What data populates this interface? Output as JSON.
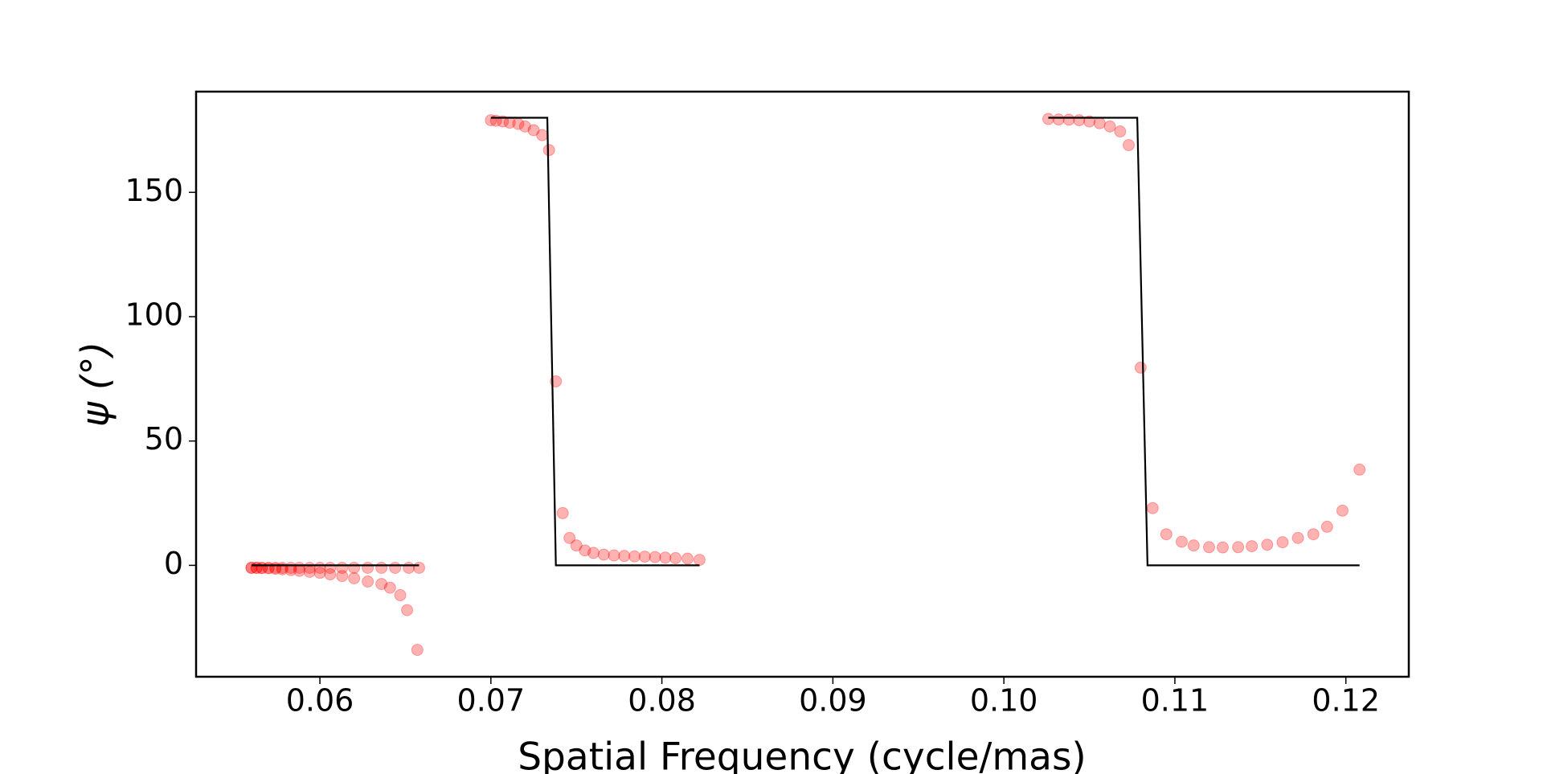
{
  "chart_data": {
    "type": "scatter",
    "xlabel": "Spatial Frequency (cycle/mas)",
    "ylabel": "ψ (°)",
    "xlim": [
      0.05276,
      0.12368
    ],
    "ylim": [
      -44.8,
      190.5
    ],
    "xticks": [
      0.06,
      0.07,
      0.08,
      0.09,
      {
        "value": 0.1,
        "label": "0.10"
      },
      0.11,
      0.12
    ],
    "yticks": [
      0,
      50,
      100,
      150
    ],
    "series": [
      {
        "type": "scatter",
        "color": "#ff0000",
        "x": [
          0.056,
          0.0563,
          0.0566,
          0.057,
          0.0574,
          0.0578,
          0.0583,
          0.0588,
          0.0594,
          0.06,
          0.0606,
          0.0613,
          0.062,
          0.0628,
          0.0636,
          0.0644,
          0.0652,
          0.0658
        ],
        "values": [
          -1,
          -1,
          -1,
          -1,
          -1,
          -1,
          -1,
          -1,
          -1,
          -1,
          -1,
          -1,
          -1,
          -1,
          -1,
          -1,
          -1,
          -1
        ]
      },
      {
        "type": "scatter",
        "color": "#ff0000",
        "x": [
          0.056,
          0.0563,
          0.0566,
          0.057,
          0.0574,
          0.0578,
          0.0583,
          0.0588,
          0.0594,
          0.06,
          0.0606,
          0.0613,
          0.062,
          0.0628,
          0.0636,
          0.0641,
          0.0647,
          0.0651,
          0.0657
        ],
        "values": [
          -1,
          -1,
          -1.1,
          -1.2,
          -1.4,
          -1.6,
          -1.9,
          -2.2,
          -2.6,
          -3,
          -3.6,
          -4.3,
          -5.2,
          -6.5,
          -7.5,
          -9,
          -12,
          -18,
          -34
        ]
      },
      {
        "type": "scatter",
        "color": "#ff0000",
        "x": [
          0.07,
          0.0703,
          0.0707,
          0.0711,
          0.0716,
          0.072,
          0.0725,
          0.073,
          0.0734,
          0.0738,
          0.0742,
          0.0746,
          0.075,
          0.0755,
          0.076,
          0.0766,
          0.0772,
          0.0778,
          0.0784,
          0.079,
          0.0796,
          0.0802,
          0.0808,
          0.0815,
          0.0822
        ],
        "values": [
          179,
          178.8,
          178.5,
          178,
          177.5,
          176.5,
          175,
          173,
          167,
          74,
          21,
          11,
          8,
          6,
          5,
          4.3,
          4,
          3.8,
          3.6,
          3.5,
          3.3,
          3.1,
          2.9,
          2.7,
          2.2
        ]
      },
      {
        "type": "scatter",
        "color": "#ff0000",
        "x": [
          0.1026,
          0.1032,
          0.1038,
          0.1044,
          0.105,
          0.1056,
          0.1062,
          0.1068,
          0.1073,
          0.108,
          0.1087,
          0.1095,
          0.1104,
          0.1111,
          0.112,
          0.1128,
          0.1137,
          0.1145,
          0.1154,
          0.1163,
          0.1172,
          0.1181,
          0.1189,
          0.1198,
          0.1208
        ],
        "values": [
          179.5,
          179.3,
          179.2,
          179,
          178.5,
          177.8,
          176.5,
          174.5,
          169,
          79.5,
          23,
          12.5,
          9.5,
          8,
          7.3,
          7.2,
          7.3,
          7.7,
          8.3,
          9.3,
          11,
          12.5,
          15.5,
          22,
          38.5
        ]
      },
      {
        "type": "line",
        "color": "#000000",
        "x": [
          0.056,
          0.0658,
          0.068,
          0.07,
          0.0733,
          0.0738,
          0.0822,
          0.09,
          0.1026,
          0.1078,
          0.1084,
          0.1208
        ],
        "values": [
          0,
          0,
          null,
          180,
          180,
          0,
          0,
          null,
          180,
          180,
          0,
          0
        ]
      }
    ]
  }
}
